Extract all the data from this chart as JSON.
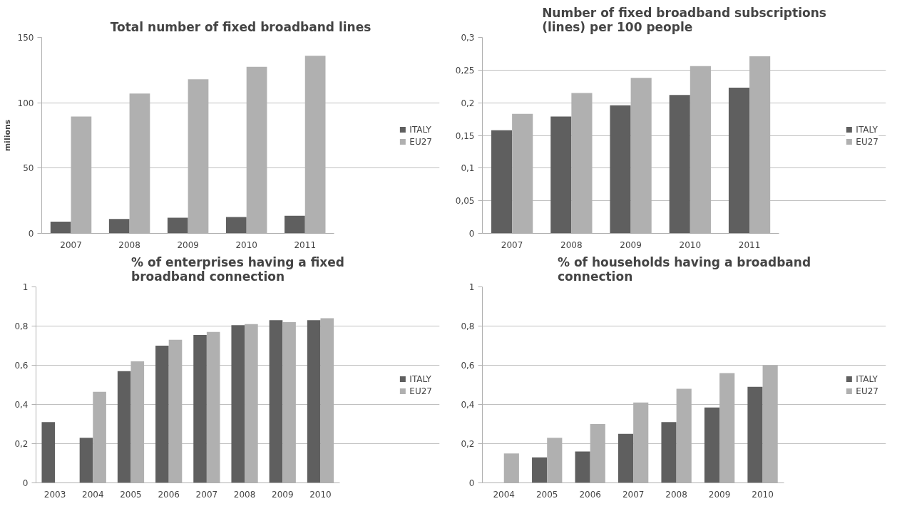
{
  "chart_data": [
    {
      "type": "bar",
      "title": "Total number of fixed broadband lines",
      "ylabel": "milions",
      "categories": [
        "2007",
        "2008",
        "2009",
        "2010",
        "2011"
      ],
      "series": [
        {
          "name": "ITALY",
          "color": "#5f5f5f",
          "values": [
            9,
            11,
            12,
            12.5,
            13.5
          ]
        },
        {
          "name": "EU27",
          "color": "#b0b0b0",
          "values": [
            89.5,
            107,
            118,
            127.5,
            136
          ]
        }
      ],
      "ylim": [
        0,
        150
      ],
      "yticks": [
        0,
        50,
        100,
        150
      ],
      "grid": "y",
      "legend": "right"
    },
    {
      "type": "bar",
      "title": "Number of fixed broadband subscriptions (lines) per 100 people",
      "categories": [
        "2007",
        "2008",
        "2009",
        "2010",
        "2011"
      ],
      "series": [
        {
          "name": "ITALY",
          "color": "#5f5f5f",
          "values": [
            0.158,
            0.179,
            0.196,
            0.212,
            0.223
          ]
        },
        {
          "name": "EU27",
          "color": "#b0b0b0",
          "values": [
            0.183,
            0.215,
            0.238,
            0.256,
            0.271
          ]
        }
      ],
      "ylim": [
        0,
        0.3
      ],
      "yticks": [
        0,
        {
          "value": 0.05,
          "label": "0,05"
        },
        {
          "value": 0.1,
          "label": "0,1"
        },
        {
          "value": 0.15,
          "label": "0,15"
        },
        {
          "value": 0.2,
          "label": "0,2"
        },
        {
          "value": 0.25,
          "label": "0,25"
        },
        {
          "value": 0.3,
          "label": "0,3"
        }
      ],
      "grid": "y",
      "legend": "right"
    },
    {
      "type": "bar",
      "title": "% of enterprises having a fixed broadband connection",
      "categories": [
        "2003",
        "2004",
        "2005",
        "2006",
        "2007",
        "2008",
        "2009",
        "2010"
      ],
      "series": [
        {
          "name": "ITALY",
          "color": "#5f5f5f",
          "values": [
            0.31,
            0.23,
            0.57,
            0.7,
            0.755,
            0.805,
            0.83,
            0.83
          ]
        },
        {
          "name": "EU27",
          "color": "#b0b0b0",
          "values": [
            null,
            0.465,
            0.62,
            0.73,
            0.77,
            0.81,
            0.82,
            0.84
          ]
        }
      ],
      "ylim": [
        0,
        1
      ],
      "yticks": [
        0,
        {
          "value": 0.2,
          "label": "0,2"
        },
        {
          "value": 0.4,
          "label": "0,4"
        },
        {
          "value": 0.6,
          "label": "0,6"
        },
        {
          "value": 0.8,
          "label": "0,8"
        },
        1
      ],
      "grid": "y",
      "legend": "right"
    },
    {
      "type": "bar",
      "title": "% of households having a broadband connection",
      "categories": [
        "2004",
        "2005",
        "2006",
        "2007",
        "2008",
        "2009",
        "2010"
      ],
      "series": [
        {
          "name": "ITALY",
          "color": "#5f5f5f",
          "values": [
            null,
            0.13,
            0.16,
            0.25,
            0.31,
            0.385,
            0.49
          ]
        },
        {
          "name": "EU27",
          "color": "#b0b0b0",
          "values": [
            0.15,
            0.23,
            0.3,
            0.41,
            0.48,
            0.56,
            0.6
          ]
        }
      ],
      "ylim": [
        0,
        1
      ],
      "yticks": [
        0,
        {
          "value": 0.2,
          "label": "0,2"
        },
        {
          "value": 0.4,
          "label": "0,4"
        },
        {
          "value": 0.6,
          "label": "0,6"
        },
        {
          "value": 0.8,
          "label": "0,8"
        },
        1
      ],
      "grid": "y",
      "legend": "right"
    }
  ]
}
